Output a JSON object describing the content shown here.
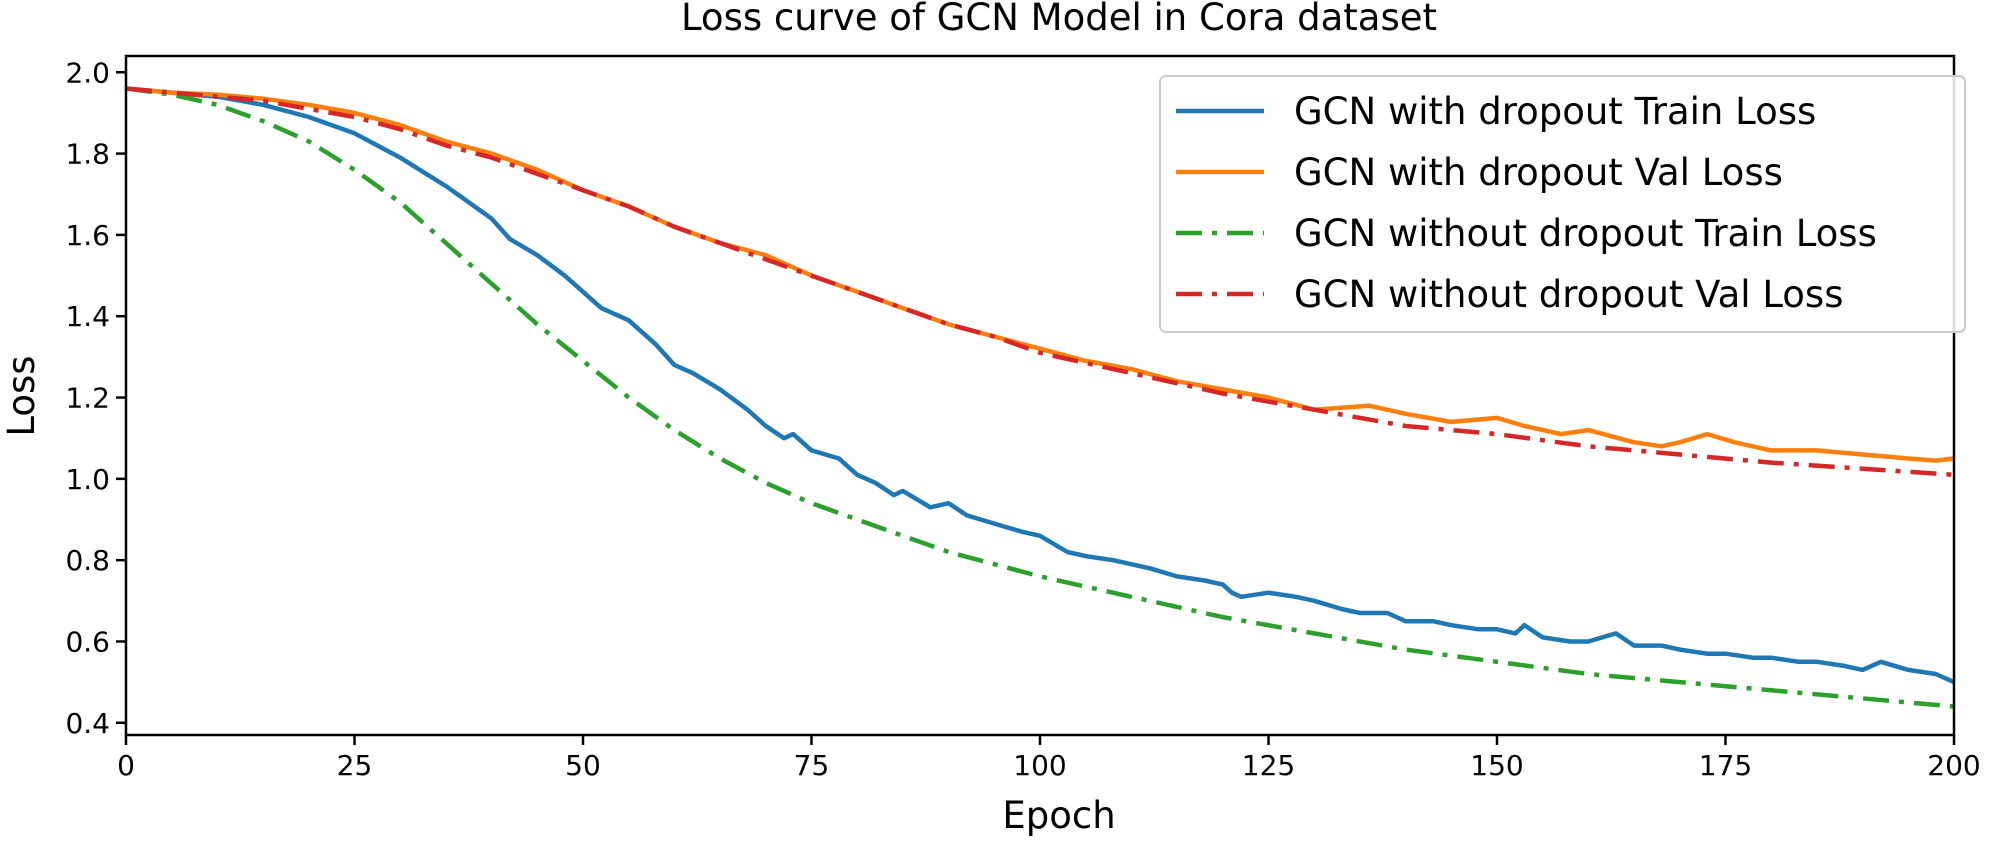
{
  "chart_data": {
    "type": "line",
    "title": "Loss curve of GCN Model in Cora dataset",
    "xlabel": "Epoch",
    "ylabel": "Loss",
    "xlim": [
      0,
      200
    ],
    "ylim": [
      0.37,
      2.04
    ],
    "xticks": [
      0,
      25,
      50,
      75,
      100,
      125,
      150,
      175,
      200
    ],
    "yticks": [
      0.4,
      0.6,
      0.8,
      1.0,
      1.2,
      1.4,
      1.6,
      1.8,
      2.0
    ],
    "xtick_labels": [
      "0",
      "25",
      "50",
      "75",
      "100",
      "125",
      "150",
      "175",
      "200"
    ],
    "ytick_labels": [
      "0.4",
      "0.6",
      "0.8",
      "1.0",
      "1.2",
      "1.4",
      "1.6",
      "1.8",
      "2.0"
    ],
    "grid": false,
    "legend": {
      "placement": "top-right"
    },
    "series": [
      {
        "name": "GCN with dropout Train Loss",
        "color": "#1f77b4",
        "style": "solid",
        "x": [
          0,
          5,
          10,
          15,
          20,
          25,
          30,
          35,
          40,
          42,
          45,
          48,
          50,
          52,
          55,
          58,
          60,
          62,
          65,
          68,
          70,
          72,
          73,
          75,
          78,
          80,
          82,
          84,
          85,
          88,
          90,
          92,
          95,
          98,
          100,
          103,
          105,
          108,
          110,
          112,
          115,
          118,
          120,
          121,
          122,
          125,
          128,
          130,
          133,
          135,
          138,
          140,
          143,
          145,
          148,
          150,
          152,
          153,
          155,
          158,
          160,
          163,
          165,
          168,
          170,
          173,
          175,
          178,
          180,
          183,
          185,
          188,
          190,
          192,
          195,
          198,
          200
        ],
        "values": [
          1.96,
          1.95,
          1.94,
          1.92,
          1.89,
          1.85,
          1.79,
          1.72,
          1.64,
          1.59,
          1.55,
          1.5,
          1.46,
          1.42,
          1.39,
          1.33,
          1.28,
          1.26,
          1.22,
          1.17,
          1.13,
          1.1,
          1.11,
          1.07,
          1.05,
          1.01,
          0.99,
          0.96,
          0.97,
          0.93,
          0.94,
          0.91,
          0.89,
          0.87,
          0.86,
          0.82,
          0.81,
          0.8,
          0.79,
          0.78,
          0.76,
          0.75,
          0.74,
          0.72,
          0.71,
          0.72,
          0.71,
          0.7,
          0.68,
          0.67,
          0.67,
          0.65,
          0.65,
          0.64,
          0.63,
          0.63,
          0.62,
          0.64,
          0.61,
          0.6,
          0.6,
          0.62,
          0.59,
          0.59,
          0.58,
          0.57,
          0.57,
          0.56,
          0.56,
          0.55,
          0.55,
          0.54,
          0.53,
          0.55,
          0.53,
          0.52,
          0.5
        ]
      },
      {
        "name": "GCN with dropout Val Loss",
        "color": "#ff7f0e",
        "style": "solid",
        "x": [
          0,
          5,
          10,
          15,
          20,
          25,
          30,
          35,
          40,
          45,
          50,
          55,
          60,
          65,
          70,
          75,
          80,
          85,
          90,
          95,
          100,
          105,
          110,
          115,
          120,
          125,
          130,
          133,
          136,
          140,
          145,
          150,
          153,
          157,
          160,
          165,
          168,
          170,
          173,
          176,
          180,
          185,
          190,
          195,
          198,
          200
        ],
        "values": [
          1.96,
          1.95,
          1.945,
          1.935,
          1.92,
          1.9,
          1.87,
          1.83,
          1.8,
          1.76,
          1.71,
          1.67,
          1.62,
          1.58,
          1.55,
          1.5,
          1.46,
          1.42,
          1.38,
          1.35,
          1.32,
          1.29,
          1.27,
          1.24,
          1.22,
          1.2,
          1.17,
          1.175,
          1.18,
          1.16,
          1.14,
          1.15,
          1.13,
          1.11,
          1.12,
          1.09,
          1.08,
          1.09,
          1.11,
          1.09,
          1.07,
          1.07,
          1.06,
          1.05,
          1.045,
          1.05
        ]
      },
      {
        "name": "GCN without dropout Train Loss",
        "color": "#2ca02c",
        "style": "dashdot",
        "x": [
          0,
          5,
          10,
          15,
          20,
          25,
          30,
          35,
          40,
          45,
          50,
          55,
          60,
          65,
          70,
          75,
          80,
          85,
          90,
          95,
          100,
          110,
          120,
          130,
          140,
          150,
          160,
          170,
          180,
          190,
          200
        ],
        "values": [
          1.96,
          1.945,
          1.92,
          1.88,
          1.83,
          1.76,
          1.68,
          1.58,
          1.48,
          1.38,
          1.29,
          1.2,
          1.12,
          1.05,
          0.99,
          0.94,
          0.9,
          0.86,
          0.82,
          0.79,
          0.76,
          0.71,
          0.66,
          0.62,
          0.58,
          0.55,
          0.52,
          0.5,
          0.48,
          0.46,
          0.44
        ]
      },
      {
        "name": "GCN without dropout Val Loss",
        "color": "#d62728",
        "style": "dashdot",
        "x": [
          0,
          5,
          10,
          15,
          20,
          25,
          30,
          35,
          40,
          45,
          50,
          55,
          60,
          65,
          70,
          75,
          80,
          85,
          90,
          95,
          100,
          110,
          120,
          130,
          140,
          150,
          160,
          170,
          180,
          190,
          200
        ],
        "values": [
          1.96,
          1.95,
          1.94,
          1.93,
          1.91,
          1.89,
          1.86,
          1.82,
          1.79,
          1.75,
          1.71,
          1.67,
          1.62,
          1.58,
          1.54,
          1.5,
          1.46,
          1.42,
          1.38,
          1.35,
          1.31,
          1.26,
          1.21,
          1.17,
          1.13,
          1.11,
          1.08,
          1.06,
          1.04,
          1.025,
          1.01
        ]
      }
    ]
  }
}
